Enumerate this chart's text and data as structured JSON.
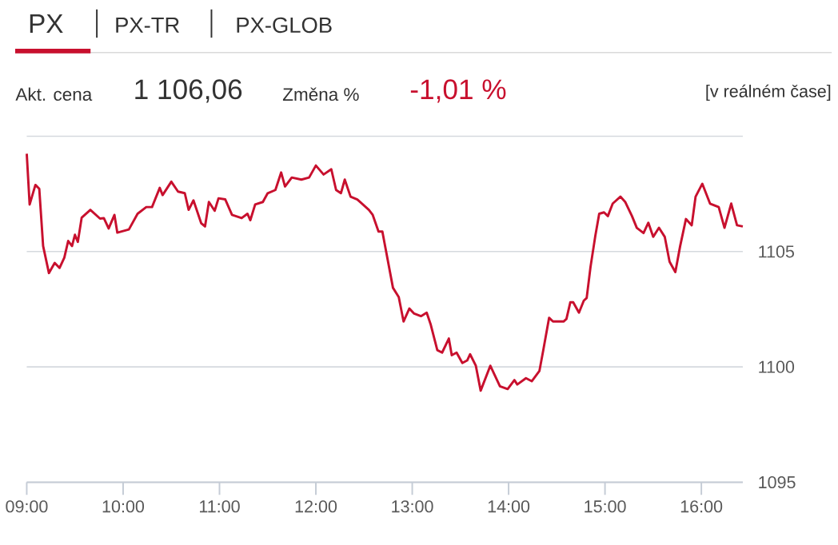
{
  "chart_data": {
    "type": "line",
    "annotations": [
      "PX",
      "PX-TR",
      "PX-GLOB",
      "Akt. cena",
      "1 106,06",
      "Změna %",
      "-1,01 %",
      "[v reálném čase]"
    ],
    "series": [
      {
        "color": "#c8102e",
        "x": [
          9.0,
          9.03,
          9.09,
          9.13,
          9.17,
          9.23,
          9.29,
          9.34,
          9.39,
          9.43,
          9.47,
          9.5,
          9.53,
          9.57,
          9.66,
          9.76,
          9.8,
          9.85,
          9.91,
          9.94,
          10.06,
          10.15,
          10.24,
          10.3,
          10.38,
          10.41,
          10.5,
          10.57,
          10.64,
          10.68,
          10.73,
          10.81,
          10.85,
          10.89,
          10.95,
          10.99,
          11.06,
          11.13,
          11.23,
          11.29,
          11.32,
          11.37,
          11.45,
          11.5,
          11.58,
          11.64,
          11.68,
          11.75,
          11.85,
          11.93,
          12.0,
          12.08,
          12.16,
          12.21,
          12.26,
          12.3,
          12.36,
          12.43,
          12.55,
          12.59,
          12.65,
          12.69,
          12.8,
          12.86,
          12.91,
          12.97,
          13.02,
          13.09,
          13.15,
          13.19,
          13.26,
          13.31,
          13.38,
          13.41,
          13.46,
          13.52,
          13.57,
          13.6,
          13.66,
          13.71,
          13.81,
          13.91,
          13.99,
          14.06,
          14.09,
          14.18,
          14.24,
          14.32,
          14.36,
          14.42,
          14.46,
          14.57,
          14.6,
          14.64,
          14.67,
          14.73,
          14.78,
          14.81,
          14.85,
          14.9,
          14.94,
          14.99,
          15.03,
          15.08,
          15.16,
          15.21,
          15.28,
          15.33,
          15.4,
          15.45,
          15.5,
          15.56,
          15.62,
          15.67,
          15.73,
          15.78,
          15.84,
          15.9,
          15.94,
          16.01,
          16.09,
          16.18,
          16.24,
          16.31,
          16.37,
          16.43
        ],
        "values": [
          1109.24,
          1107.04,
          1107.89,
          1107.72,
          1105.24,
          1104.07,
          1104.51,
          1104.29,
          1104.74,
          1105.46,
          1105.24,
          1105.73,
          1105.42,
          1106.47,
          1106.81,
          1106.43,
          1106.45,
          1106.0,
          1106.59,
          1105.82,
          1105.96,
          1106.64,
          1106.93,
          1106.93,
          1107.76,
          1107.45,
          1108.03,
          1107.6,
          1107.53,
          1106.81,
          1107.22,
          1106.23,
          1106.09,
          1107.15,
          1106.77,
          1107.31,
          1107.26,
          1106.59,
          1106.45,
          1106.64,
          1106.36,
          1107.04,
          1107.15,
          1107.53,
          1107.67,
          1108.43,
          1107.82,
          1108.21,
          1108.12,
          1108.21,
          1108.73,
          1108.34,
          1108.57,
          1107.67,
          1107.53,
          1108.12,
          1107.38,
          1107.26,
          1106.81,
          1106.59,
          1105.87,
          1105.87,
          1103.43,
          1103.03,
          1101.97,
          1102.53,
          1102.31,
          1102.2,
          1102.35,
          1101.86,
          1100.73,
          1100.62,
          1101.23,
          1100.51,
          1100.62,
          1100.17,
          1100.28,
          1100.55,
          1100.05,
          1098.97,
          1100.05,
          1099.16,
          1099.04,
          1099.43,
          1099.24,
          1099.51,
          1099.38,
          1099.83,
          1100.73,
          1102.13,
          1101.97,
          1101.97,
          1102.08,
          1102.8,
          1102.8,
          1102.35,
          1102.87,
          1102.99,
          1104.34,
          1105.69,
          1106.64,
          1106.7,
          1106.54,
          1107.08,
          1107.38,
          1107.15,
          1106.54,
          1106.03,
          1105.8,
          1106.25,
          1105.64,
          1106.03,
          1105.64,
          1104.56,
          1104.11,
          1105.24,
          1106.41,
          1106.14,
          1107.38,
          1107.94,
          1107.08,
          1106.93,
          1106.03,
          1107.08,
          1106.14,
          1106.09
        ]
      }
    ],
    "xlim": [
      9,
      16.43
    ],
    "xticks": [
      {
        "value": 9,
        "label": "09:00"
      },
      {
        "value": 10,
        "label": "10:00"
      },
      {
        "value": 11,
        "label": "11:00"
      },
      {
        "value": 12,
        "label": "12:00"
      },
      {
        "value": 13,
        "label": "13:00"
      },
      {
        "value": 14,
        "label": "14:00"
      },
      {
        "value": 15,
        "label": "15:00"
      },
      {
        "value": 16,
        "label": "16:00"
      }
    ],
    "ylim": [
      1095,
      1110
    ],
    "yticks": [
      1095,
      1100,
      1105,
      {
        "value": 1110,
        "label": null
      }
    ],
    "grid": "y",
    "marker": "none",
    "line_style": "solid"
  }
}
